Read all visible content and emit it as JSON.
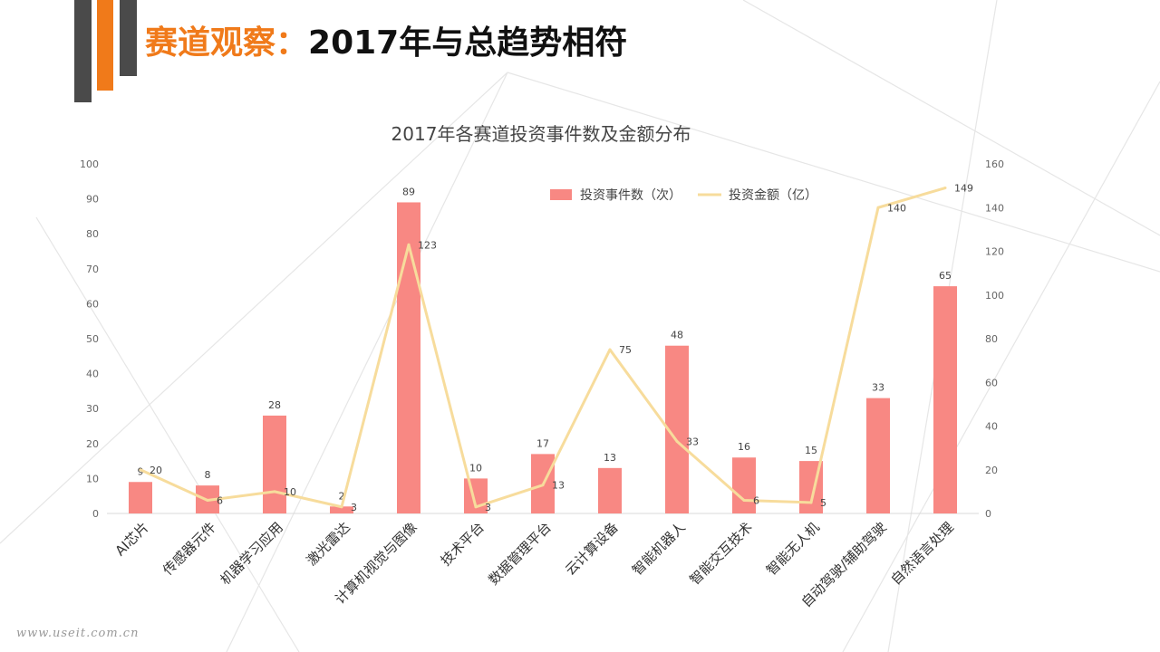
{
  "header": {
    "title_accent": "赛道观察：",
    "title_rest": "2017年与总趋势相符",
    "accent_color": "#f07a1a",
    "deco_dark_color": "#4a4a4a"
  },
  "watermark": "www.useit.com.cn",
  "chart_data": {
    "type": "bar",
    "title": "2017年各赛道投资事件数及金额分布",
    "categories": [
      "AI芯片",
      "传感器元件",
      "机器学习应用",
      "激光雷达",
      "计算机视觉与图像",
      "技术平台",
      "数据管理平台",
      "云计算设备",
      "智能机器人",
      "智能交互技术",
      "智能无人机",
      "自动驾驶/辅助驾驶",
      "自然语言处理"
    ],
    "series": [
      {
        "name": "投资事件数（次）",
        "type": "bar",
        "axis": "left",
        "color": "#f88883",
        "values": [
          9,
          8,
          28,
          2,
          89,
          10,
          17,
          13,
          48,
          16,
          15,
          33,
          65
        ]
      },
      {
        "name": "投资金额（亿）",
        "type": "line",
        "axis": "right",
        "color": "#f7dc9c",
        "values": [
          20,
          6,
          10,
          3,
          123,
          3,
          13,
          75,
          33,
          6,
          5,
          140,
          149
        ]
      }
    ],
    "y_left": {
      "min": 0,
      "max": 100,
      "step": 10
    },
    "y_right": {
      "min": 0,
      "max": 160,
      "step": 20
    },
    "grid": false,
    "legend_position": "top-right"
  }
}
